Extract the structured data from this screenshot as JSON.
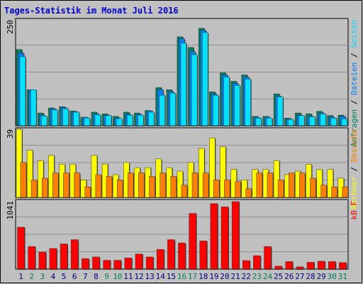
{
  "title": "Tages-Statistik im Monat Juli 2016",
  "colors": {
    "background": "#c0c0c0",
    "title": "#0000cc",
    "grid": "#808080",
    "frame": "#000000",
    "anfragen": "#00805c",
    "dateien": "#0080ff",
    "seiten": "#00e0ff",
    "rechner": "#ffff00",
    "besuche": "#ff8000",
    "kbf": "#ff0000",
    "weekday_label": "#000080",
    "weekend_label": "#00805c"
  },
  "chart_data": [
    {
      "type": "bar",
      "title": "Tages-Statistik im Monat Juli 2016",
      "ymax_label": "250",
      "ylim": [
        0,
        250
      ],
      "legend": [
        {
          "text": "Anfragen",
          "color_key": "anfragen"
        },
        {
          "text": "Dateien",
          "color_key": "dateien"
        },
        {
          "text": "Seiten",
          "color_key": "seiten"
        }
      ],
      "legend_sep": " / ",
      "series": [
        {
          "name": "Anfragen",
          "values": [
            180,
            85,
            30,
            42,
            45,
            35,
            20,
            32,
            28,
            22,
            32,
            30,
            36,
            90,
            85,
            210,
            185,
            230,
            80,
            125,
            105,
            120,
            22,
            22,
            75,
            18,
            30,
            28,
            34,
            24,
            25
          ]
        },
        {
          "name": "Dateien",
          "values": [
            172,
            85,
            25,
            40,
            43,
            33,
            20,
            28,
            25,
            18,
            27,
            27,
            35,
            85,
            80,
            205,
            175,
            225,
            75,
            120,
            100,
            115,
            20,
            20,
            70,
            16,
            25,
            22,
            30,
            20,
            22
          ]
        },
        {
          "name": "Seiten",
          "values": [
            163,
            85,
            23,
            37,
            40,
            32,
            18,
            26,
            24,
            17,
            25,
            25,
            32,
            72,
            77,
            195,
            168,
            220,
            72,
            115,
            95,
            110,
            18,
            18,
            68,
            15,
            24,
            21,
            28,
            18,
            16
          ]
        }
      ]
    },
    {
      "type": "bar",
      "ymax_label": "39",
      "ylim": [
        0,
        39
      ],
      "legend": [
        {
          "text": "Rechner",
          "color_key": "rechner"
        },
        {
          "text": "Besuche",
          "color_key": "besuche"
        }
      ],
      "legend_sep": " / ",
      "series": [
        {
          "name": "Rechner",
          "values": [
            39,
            27,
            21,
            24,
            19,
            19,
            10,
            24,
            19,
            13,
            20,
            17,
            17,
            22,
            17,
            15,
            20,
            28,
            34,
            29,
            16,
            10,
            16,
            16,
            21,
            13,
            15,
            19,
            16,
            16,
            11
          ]
        },
        {
          "name": "Besuche",
          "values": [
            20,
            10,
            11,
            14,
            14,
            14,
            6,
            13,
            12,
            10,
            14,
            14,
            12,
            14,
            12,
            7,
            14,
            14,
            10,
            10,
            9,
            5,
            14,
            14,
            10,
            14,
            14,
            11,
            7,
            6,
            6
          ]
        }
      ]
    },
    {
      "type": "bar",
      "ymax_label": "1041",
      "ylim": [
        0,
        1041
      ],
      "legend": [
        {
          "text": "kB F",
          "color_key": "kbf"
        }
      ],
      "legend_sep": "",
      "series": [
        {
          "name": "kB F",
          "values": [
            640,
            345,
            260,
            315,
            385,
            450,
            160,
            185,
            135,
            135,
            170,
            230,
            185,
            300,
            450,
            400,
            850,
            430,
            1000,
            950,
            1030,
            130,
            205,
            345,
            45,
            115,
            35,
            105,
            120,
            115,
            100
          ]
        }
      ]
    }
  ],
  "days": [
    {
      "label": "1",
      "weekend": false
    },
    {
      "label": "2",
      "weekend": true
    },
    {
      "label": "3",
      "weekend": true
    },
    {
      "label": "4",
      "weekend": false
    },
    {
      "label": "5",
      "weekend": false
    },
    {
      "label": "6",
      "weekend": false
    },
    {
      "label": "7",
      "weekend": false
    },
    {
      "label": "8",
      "weekend": false
    },
    {
      "label": "9",
      "weekend": true
    },
    {
      "label": "10",
      "weekend": true
    },
    {
      "label": "11",
      "weekend": false
    },
    {
      "label": "12",
      "weekend": false
    },
    {
      "label": "13",
      "weekend": false
    },
    {
      "label": "14",
      "weekend": false
    },
    {
      "label": "15",
      "weekend": false
    },
    {
      "label": "16",
      "weekend": true
    },
    {
      "label": "17",
      "weekend": true
    },
    {
      "label": "18",
      "weekend": false
    },
    {
      "label": "19",
      "weekend": false
    },
    {
      "label": "20",
      "weekend": false
    },
    {
      "label": "21",
      "weekend": false
    },
    {
      "label": "22",
      "weekend": false
    },
    {
      "label": "23",
      "weekend": true
    },
    {
      "label": "24",
      "weekend": true
    },
    {
      "label": "25",
      "weekend": false
    },
    {
      "label": "26",
      "weekend": false
    },
    {
      "label": "27",
      "weekend": false
    },
    {
      "label": "28",
      "weekend": false
    },
    {
      "label": "29",
      "weekend": false
    },
    {
      "label": "30",
      "weekend": true
    },
    {
      "label": "31",
      "weekend": true
    }
  ]
}
